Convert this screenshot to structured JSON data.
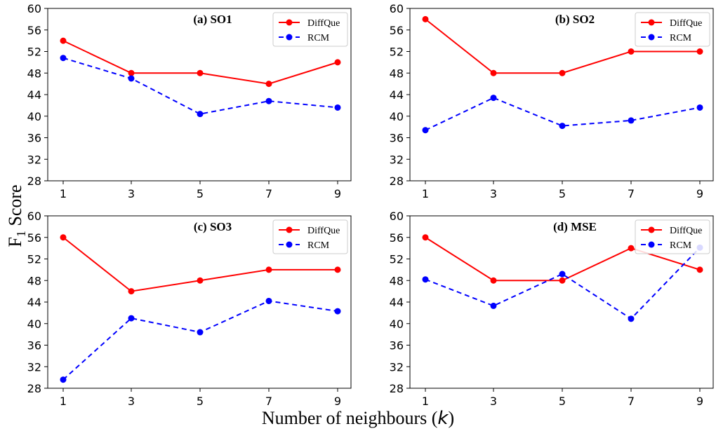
{
  "figure": {
    "ylabel": "F",
    "ylabel_sub": "1",
    "ylabel_rest": " Score",
    "xlabel": "Number of neighbours (",
    "xlabel_var": "k",
    "xlabel_end": ")"
  },
  "colors": {
    "DiffQue": "#ff0000",
    "RCM": "#0000ff"
  },
  "chart_data": [
    {
      "type": "line",
      "title": "(a) SO1",
      "x": [
        1,
        3,
        5,
        7,
        9
      ],
      "xticks": [
        "1",
        "3",
        "5",
        "7",
        "9"
      ],
      "ylim": [
        28,
        60
      ],
      "yticks": [
        "28",
        "32",
        "36",
        "40",
        "44",
        "48",
        "52",
        "56",
        "60"
      ],
      "legend": "top-right",
      "series": [
        {
          "name": "DiffQue",
          "values": [
            54,
            48,
            48,
            46,
            50
          ]
        },
        {
          "name": "RCM",
          "values": [
            50.8,
            47,
            40.4,
            42.8,
            41.6
          ]
        }
      ]
    },
    {
      "type": "line",
      "title": "(b) SO2",
      "x": [
        1,
        3,
        5,
        7,
        9
      ],
      "xticks": [
        "1",
        "3",
        "5",
        "7",
        "9"
      ],
      "ylim": [
        28,
        60
      ],
      "yticks": [
        "28",
        "32",
        "36",
        "40",
        "44",
        "48",
        "52",
        "56",
        "60"
      ],
      "legend": "top-right",
      "series": [
        {
          "name": "DiffQue",
          "values": [
            58,
            48,
            48,
            52,
            52
          ]
        },
        {
          "name": "RCM",
          "values": [
            37.4,
            43.4,
            38.2,
            39.2,
            41.6
          ]
        }
      ]
    },
    {
      "type": "line",
      "title": "(c) SO3",
      "x": [
        1,
        3,
        5,
        7,
        9
      ],
      "xticks": [
        "1",
        "3",
        "5",
        "7",
        "9"
      ],
      "ylim": [
        28,
        60
      ],
      "yticks": [
        "28",
        "32",
        "36",
        "40",
        "44",
        "48",
        "52",
        "56",
        "60"
      ],
      "legend": "top-right",
      "series": [
        {
          "name": "DiffQue",
          "values": [
            56,
            46,
            48,
            50,
            50
          ]
        },
        {
          "name": "RCM",
          "values": [
            29.6,
            41,
            38.4,
            44.2,
            42.3
          ]
        }
      ]
    },
    {
      "type": "line",
      "title": "(d) MSE",
      "x": [
        1,
        3,
        5,
        7,
        9
      ],
      "xticks": [
        "1",
        "3",
        "5",
        "7",
        "9"
      ],
      "ylim": [
        28,
        60
      ],
      "yticks": [
        "28",
        "32",
        "36",
        "40",
        "44",
        "48",
        "52",
        "56",
        "60"
      ],
      "legend": "top-right",
      "series": [
        {
          "name": "DiffQue",
          "values": [
            56,
            48,
            48,
            54,
            50
          ]
        },
        {
          "name": "RCM",
          "values": [
            48.2,
            43.3,
            49.2,
            40.9,
            54.1
          ]
        }
      ]
    }
  ]
}
